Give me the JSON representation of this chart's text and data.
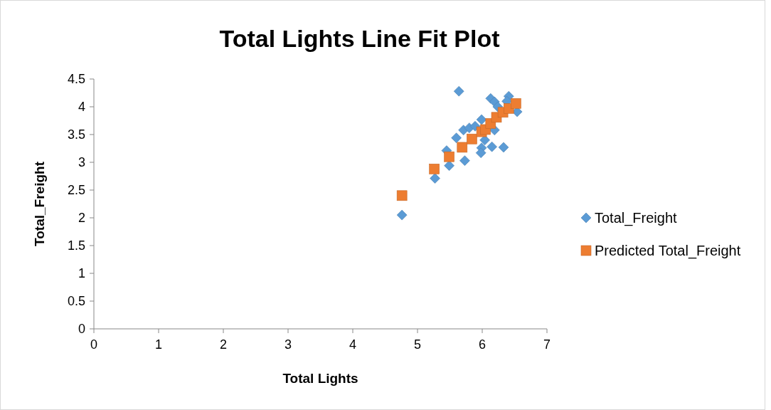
{
  "chart_data": {
    "type": "scatter",
    "title": "Total Lights Line Fit  Plot",
    "xlabel": "Total Lights",
    "ylabel": "Total_Freight",
    "xlim": [
      0,
      7
    ],
    "xticks": [
      0,
      1,
      2,
      3,
      4,
      5,
      6,
      7
    ],
    "ylim": [
      0,
      4.5
    ],
    "yticks": [
      0,
      0.5,
      1,
      1.5,
      2,
      2.5,
      3,
      3.5,
      4,
      4.5
    ],
    "grid": false,
    "legend": "right",
    "series": [
      {
        "name": "Total_Freight",
        "color": "#5b9bd5",
        "marker": "diamond",
        "x": [
          4.76,
          5.27,
          5.64,
          5.49,
          5.45,
          5.6,
          5.73,
          5.71,
          5.8,
          5.89,
          5.99,
          5.99,
          5.98,
          6.04,
          6.15,
          6.33,
          6.13,
          6.19,
          6.24,
          6.19,
          6.41,
          6.38,
          6.54
        ],
        "values": [
          2.05,
          2.71,
          4.28,
          2.94,
          3.21,
          3.44,
          3.03,
          3.58,
          3.62,
          3.65,
          3.77,
          3.26,
          3.17,
          3.4,
          3.28,
          3.27,
          4.15,
          4.09,
          4.0,
          3.58,
          4.19,
          4.1,
          3.91
        ]
      },
      {
        "name": "Predicted Total_Freight",
        "color": "#ed7d31",
        "marker": "square",
        "x": [
          4.76,
          5.26,
          5.49,
          5.69,
          5.84,
          5.99,
          6.05,
          6.13,
          6.22,
          6.32,
          6.41,
          6.52
        ],
        "values": [
          2.4,
          2.88,
          3.1,
          3.27,
          3.42,
          3.55,
          3.59,
          3.7,
          3.81,
          3.9,
          3.97,
          4.06
        ]
      }
    ]
  }
}
